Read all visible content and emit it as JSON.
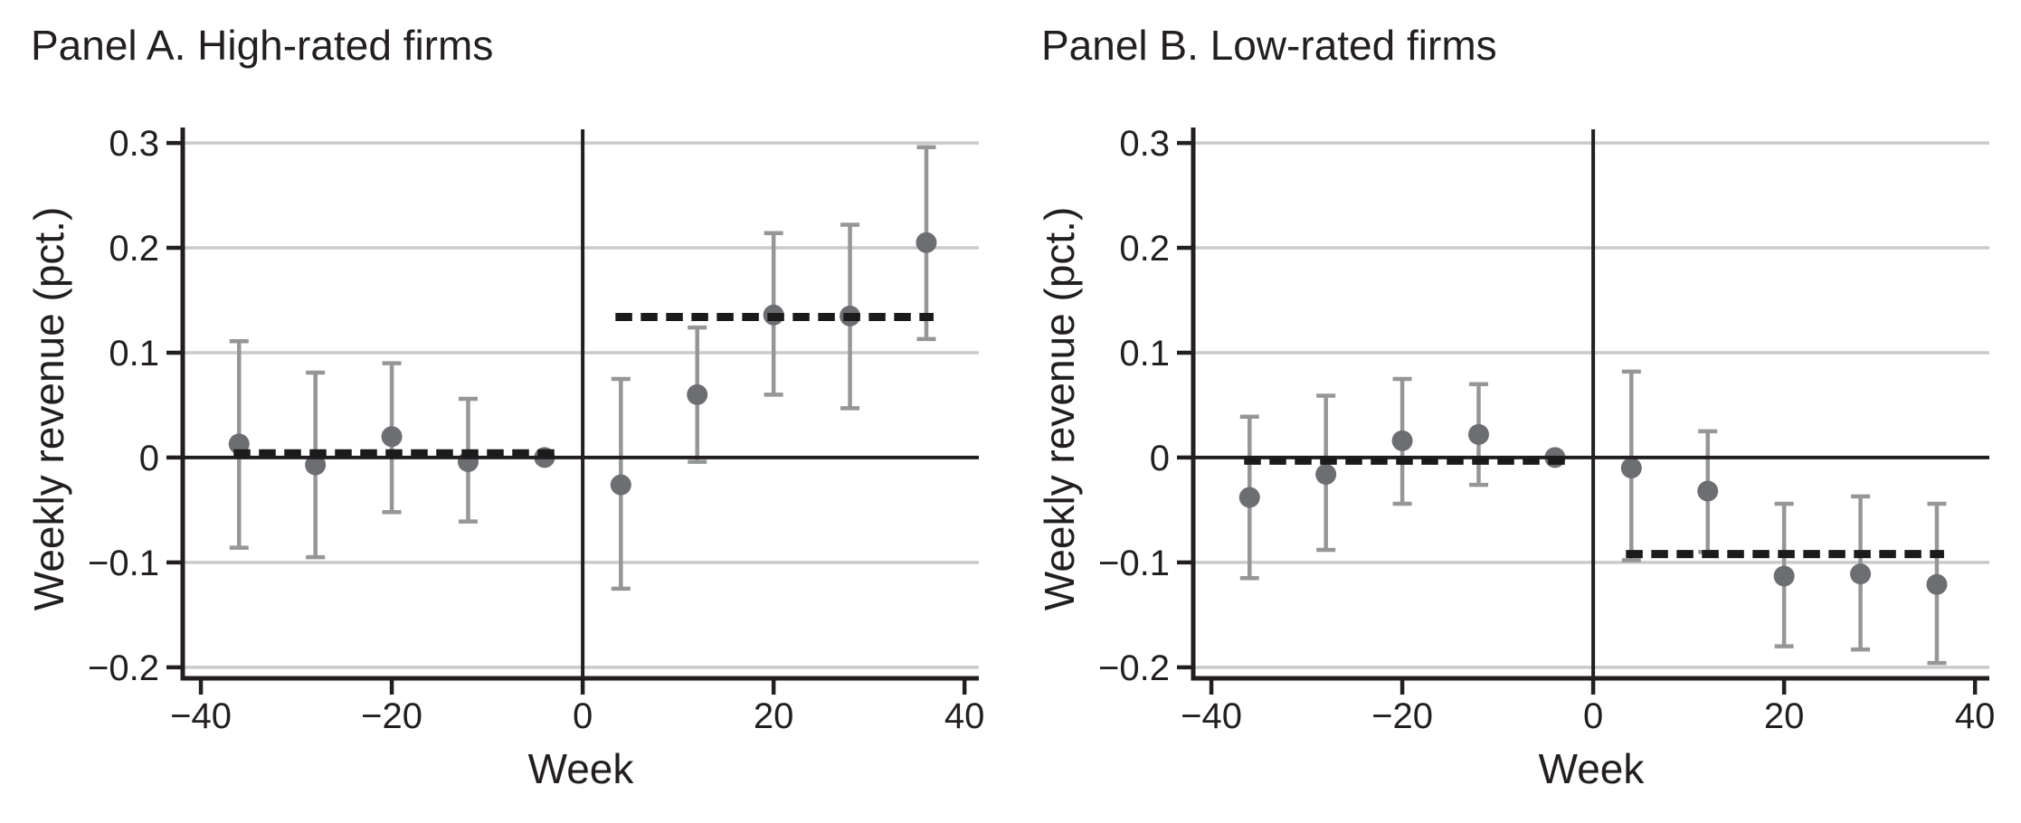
{
  "colors": {
    "background": "#ffffff",
    "text": "#231f20",
    "axis": "#231f20",
    "gridline": "#c9cacb",
    "error_bar": "#949698",
    "point": "#6d6e71",
    "mean_line": "#1b1b1b"
  },
  "chart_data": [
    {
      "type": "scatter",
      "title": "Panel A. High-rated firms",
      "xlabel": "Week",
      "ylabel": "Weekly revenue (pct.)",
      "xlim": [
        -41.9,
        41.5
      ],
      "ylim": [
        -0.2105,
        0.313
      ],
      "x_ticks": [
        -40,
        -20,
        0,
        20,
        40
      ],
      "x_tick_labels": [
        "−40",
        "−20",
        "0",
        "20",
        "40"
      ],
      "y_ticks": [
        0.3,
        0.2,
        0.1,
        0,
        -0.1,
        -0.2
      ],
      "y_tick_labels": [
        "0.3",
        "0.2",
        "0.1",
        "0",
        "−0.1",
        "−0.2"
      ],
      "grid": "horizontal",
      "legend": "none",
      "event_vline_x": 0,
      "zero_hline_y": 0,
      "reference_week": -4,
      "series": [
        {
          "name": "estimates",
          "x": [
            -36,
            -28,
            -20,
            -12,
            -4,
            4,
            12,
            20,
            28,
            36
          ],
          "y": [
            0.013,
            -0.007,
            0.02,
            -0.004,
            0,
            -0.026,
            0.06,
            0.136,
            0.135,
            0.205
          ],
          "ci_low": [
            -0.086,
            -0.095,
            -0.052,
            -0.061,
            null,
            -0.125,
            -0.004,
            0.06,
            0.047,
            0.113
          ],
          "ci_high": [
            0.111,
            0.081,
            0.09,
            0.056,
            null,
            0.075,
            0.124,
            0.214,
            0.222,
            0.296
          ]
        }
      ],
      "pre_period_mean": {
        "y": 0.004,
        "x_start": -36,
        "x_end": -4
      },
      "post_period_mean": {
        "y": 0.134,
        "x_start": 4,
        "x_end": 36
      }
    },
    {
      "type": "scatter",
      "title": "Panel B. Low-rated firms",
      "xlabel": "Week",
      "ylabel": "Weekly revenue (pct.)",
      "xlim": [
        -41.9,
        41.5
      ],
      "ylim": [
        -0.2105,
        0.313
      ],
      "x_ticks": [
        -40,
        -20,
        0,
        20,
        40
      ],
      "x_tick_labels": [
        "−40",
        "−20",
        "0",
        "20",
        "40"
      ],
      "y_ticks": [
        0.3,
        0.2,
        0.1,
        0,
        -0.1,
        -0.2
      ],
      "y_tick_labels": [
        "0.3",
        "0.2",
        "0.1",
        "0",
        "−0.1",
        "−0.2"
      ],
      "grid": "horizontal",
      "legend": "none",
      "event_vline_x": 0,
      "zero_hline_y": 0,
      "reference_week": -4,
      "series": [
        {
          "name": "estimates",
          "x": [
            -36,
            -28,
            -20,
            -12,
            -4,
            4,
            12,
            20,
            28,
            36
          ],
          "y": [
            -0.038,
            -0.016,
            0.016,
            0.022,
            0,
            -0.01,
            -0.032,
            -0.113,
            -0.111,
            -0.121
          ],
          "ci_low": [
            -0.115,
            -0.088,
            -0.044,
            -0.026,
            null,
            -0.098,
            -0.09,
            -0.18,
            -0.183,
            -0.196
          ],
          "ci_high": [
            0.039,
            0.059,
            0.075,
            0.07,
            null,
            0.082,
            0.025,
            -0.044,
            -0.037,
            -0.044
          ]
        }
      ],
      "pre_period_mean": {
        "y": -0.003,
        "x_start": -36,
        "x_end": -4
      },
      "post_period_mean": {
        "y": -0.092,
        "x_start": 4,
        "x_end": 36
      }
    }
  ]
}
